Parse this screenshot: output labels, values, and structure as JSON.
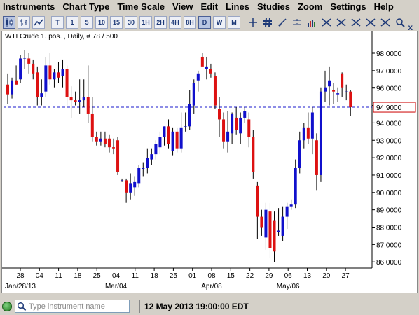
{
  "menu": [
    "Instruments",
    "Chart Type",
    "Time Scale",
    "View",
    "Edit",
    "Lines",
    "Studies",
    "Zoom",
    "Settings",
    "Help"
  ],
  "toolbar": {
    "timeframes": [
      "T",
      "1",
      "5",
      "10",
      "15",
      "30",
      "1H",
      "2H",
      "4H",
      "8H",
      "D",
      "W",
      "M"
    ],
    "active_timeframe": "D"
  },
  "chart": {
    "title": "WTI Crude 1. pos. , Daily, # 78 / 500",
    "close_label": "x",
    "price_ticks": [
      "98.0000",
      "97.0000",
      "96.0000",
      "95.0000",
      "94.0000",
      "93.0000",
      "92.0000",
      "91.0000",
      "90.0000",
      "89.0000",
      "88.0000",
      "87.0000",
      "86.0000"
    ],
    "date_ticks": [
      "28",
      "04",
      "11",
      "18",
      "25",
      "04",
      "11",
      "18",
      "25",
      "01",
      "08",
      "15",
      "22",
      "29",
      "06",
      "13",
      "20",
      "27"
    ],
    "month_labels": [
      "Jan/28/13",
      "Mar/04",
      "Apr/08",
      "May/06"
    ],
    "current_price_label": "94.9000",
    "colors": {
      "up": "#1010cc",
      "down": "#dd1111",
      "price_line": "#1a1acc",
      "price_box": "#cc0000"
    }
  },
  "chart_data": {
    "type": "candlestick",
    "title": "WTI Crude 1. pos. , Daily, # 78 / 500",
    "ylim": [
      85.5,
      98.5
    ],
    "current_price": 94.9,
    "x_ticks": [
      "28",
      "04",
      "11",
      "18",
      "25",
      "04",
      "11",
      "18",
      "25",
      "01",
      "08",
      "15",
      "22",
      "29",
      "06",
      "13",
      "20",
      "27"
    ],
    "candles": [
      {
        "o": 96.2,
        "h": 96.8,
        "l": 95.1,
        "c": 95.6
      },
      {
        "o": 95.6,
        "h": 96.6,
        "l": 95.4,
        "c": 96.4
      },
      {
        "o": 96.4,
        "h": 97.3,
        "l": 96.2,
        "c": 96.2
      },
      {
        "o": 96.5,
        "h": 97.9,
        "l": 96.3,
        "c": 97.7
      },
      {
        "o": 97.7,
        "h": 98.2,
        "l": 97.1,
        "c": 97.7
      },
      {
        "o": 97.7,
        "h": 98.0,
        "l": 96.8,
        "c": 97.4
      },
      {
        "o": 97.4,
        "h": 97.6,
        "l": 96.5,
        "c": 96.8
      },
      {
        "o": 96.9,
        "h": 97.2,
        "l": 95.0,
        "c": 95.5
      },
      {
        "o": 95.5,
        "h": 96.5,
        "l": 95.0,
        "c": 95.7
      },
      {
        "o": 95.8,
        "h": 97.8,
        "l": 95.5,
        "c": 97.3
      },
      {
        "o": 97.3,
        "h": 98.0,
        "l": 96.2,
        "c": 96.5
      },
      {
        "o": 96.5,
        "h": 97.1,
        "l": 96.0,
        "c": 96.9
      },
      {
        "o": 96.9,
        "h": 97.5,
        "l": 96.3,
        "c": 96.6
      },
      {
        "o": 96.7,
        "h": 97.6,
        "l": 96.0,
        "c": 97.1
      },
      {
        "o": 97.1,
        "h": 97.3,
        "l": 95.0,
        "c": 95.5
      },
      {
        "o": 95.5,
        "h": 96.1,
        "l": 94.3,
        "c": 95.3
      },
      {
        "o": 95.3,
        "h": 95.8,
        "l": 95.0,
        "c": 95.2
      },
      {
        "o": 95.2,
        "h": 96.5,
        "l": 94.5,
        "c": 95.3
      },
      {
        "o": 95.3,
        "h": 96.5,
        "l": 94.9,
        "c": 95.5
      },
      {
        "o": 95.5,
        "h": 97.3,
        "l": 94.0,
        "c": 94.5
      },
      {
        "o": 94.5,
        "h": 95.5,
        "l": 92.9,
        "c": 93.2
      },
      {
        "o": 93.2,
        "h": 93.5,
        "l": 92.7,
        "c": 92.9
      },
      {
        "o": 92.9,
        "h": 93.5,
        "l": 92.7,
        "c": 93.1
      },
      {
        "o": 93.1,
        "h": 93.5,
        "l": 92.6,
        "c": 92.8
      },
      {
        "o": 93.1,
        "h": 93.3,
        "l": 92.3,
        "c": 92.6
      },
      {
        "o": 92.6,
        "h": 93.1,
        "l": 92.2,
        "c": 92.5
      },
      {
        "o": 93.0,
        "h": 93.2,
        "l": 91.0,
        "c": 91.2
      },
      {
        "o": 90.7,
        "h": 90.8,
        "l": 90.6,
        "c": 90.7
      },
      {
        "o": 90.7,
        "h": 90.8,
        "l": 89.4,
        "c": 90.0
      },
      {
        "o": 90.0,
        "h": 91.1,
        "l": 89.6,
        "c": 90.5
      },
      {
        "o": 90.3,
        "h": 90.9,
        "l": 89.8,
        "c": 90.6
      },
      {
        "o": 90.5,
        "h": 91.6,
        "l": 90.3,
        "c": 91.4
      },
      {
        "o": 91.4,
        "h": 91.7,
        "l": 90.9,
        "c": 91.4
      },
      {
        "o": 91.4,
        "h": 92.5,
        "l": 91.1,
        "c": 92.0
      },
      {
        "o": 91.9,
        "h": 92.5,
        "l": 91.6,
        "c": 92.2
      },
      {
        "o": 92.2,
        "h": 93.0,
        "l": 91.9,
        "c": 92.8
      },
      {
        "o": 92.6,
        "h": 93.5,
        "l": 92.2,
        "c": 93.2
      },
      {
        "o": 93.2,
        "h": 93.8,
        "l": 92.7,
        "c": 93.8
      },
      {
        "o": 93.8,
        "h": 94.2,
        "l": 92.5,
        "c": 92.8
      },
      {
        "o": 92.4,
        "h": 93.7,
        "l": 92.1,
        "c": 93.5
      },
      {
        "o": 93.5,
        "h": 93.7,
        "l": 92.3,
        "c": 92.5
      },
      {
        "o": 92.5,
        "h": 94.6,
        "l": 92.3,
        "c": 93.7
      },
      {
        "o": 93.8,
        "h": 94.6,
        "l": 93.5,
        "c": 93.8
      },
      {
        "o": 93.8,
        "h": 95.9,
        "l": 93.6,
        "c": 95.1
      },
      {
        "o": 95.0,
        "h": 96.5,
        "l": 94.5,
        "c": 96.3
      },
      {
        "o": 96.4,
        "h": 97.0,
        "l": 95.8,
        "c": 96.8
      },
      {
        "o": 97.8,
        "h": 98.0,
        "l": 97.3,
        "c": 97.2
      },
      {
        "o": 97.1,
        "h": 97.8,
        "l": 96.5,
        "c": 97.2
      },
      {
        "o": 97.1,
        "h": 97.4,
        "l": 96.6,
        "c": 96.8
      },
      {
        "o": 96.7,
        "h": 96.9,
        "l": 94.8,
        "c": 95.0
      },
      {
        "o": 94.8,
        "h": 95.5,
        "l": 93.2,
        "c": 94.2
      },
      {
        "o": 94.2,
        "h": 94.6,
        "l": 92.5,
        "c": 92.9
      },
      {
        "o": 92.9,
        "h": 94.7,
        "l": 92.3,
        "c": 93.5
      },
      {
        "o": 93.4,
        "h": 94.6,
        "l": 92.8,
        "c": 94.5
      },
      {
        "o": 94.3,
        "h": 94.9,
        "l": 93.3,
        "c": 93.6
      },
      {
        "o": 93.4,
        "h": 94.6,
        "l": 92.8,
        "c": 94.3
      },
      {
        "o": 94.3,
        "h": 94.9,
        "l": 94.0,
        "c": 94.7
      },
      {
        "o": 94.2,
        "h": 94.6,
        "l": 92.6,
        "c": 93.2
      },
      {
        "o": 93.2,
        "h": 93.6,
        "l": 90.8,
        "c": 91.2
      },
      {
        "o": 90.4,
        "h": 90.6,
        "l": 87.3,
        "c": 88.6
      },
      {
        "o": 88.6,
        "h": 89.0,
        "l": 87.5,
        "c": 88.0
      },
      {
        "o": 87.4,
        "h": 89.4,
        "l": 86.7,
        "c": 89.0
      },
      {
        "o": 88.9,
        "h": 89.4,
        "l": 86.2,
        "c": 86.8
      },
      {
        "o": 88.4,
        "h": 88.9,
        "l": 86.0,
        "c": 86.6
      },
      {
        "o": 87.7,
        "h": 89.1,
        "l": 87.5,
        "c": 87.8
      },
      {
        "o": 87.5,
        "h": 89.2,
        "l": 87.2,
        "c": 88.6
      },
      {
        "o": 88.6,
        "h": 89.4,
        "l": 87.9,
        "c": 89.2
      },
      {
        "o": 89.2,
        "h": 89.6,
        "l": 89.0,
        "c": 89.3
      },
      {
        "o": 89.3,
        "h": 91.9,
        "l": 89.1,
        "c": 91.4
      },
      {
        "o": 91.4,
        "h": 93.5,
        "l": 91.1,
        "c": 93.0
      },
      {
        "o": 93.0,
        "h": 94.0,
        "l": 92.5,
        "c": 93.7
      },
      {
        "o": 93.7,
        "h": 94.6,
        "l": 92.8,
        "c": 93.1
      },
      {
        "o": 93.1,
        "h": 94.9,
        "l": 92.2,
        "c": 94.6
      },
      {
        "o": 93.0,
        "h": 93.4,
        "l": 90.1,
        "c": 91.0
      },
      {
        "o": 91.0,
        "h": 96.0,
        "l": 90.6,
        "c": 95.8
      },
      {
        "o": 95.8,
        "h": 97.0,
        "l": 95.2,
        "c": 96.0
      },
      {
        "o": 96.1,
        "h": 97.2,
        "l": 95.0,
        "c": 96.4
      },
      {
        "o": 95.9,
        "h": 96.3,
        "l": 95.1,
        "c": 95.8
      },
      {
        "o": 95.6,
        "h": 96.0,
        "l": 95.2,
        "c": 95.7
      },
      {
        "o": 96.8,
        "h": 96.9,
        "l": 95.5,
        "c": 96.0
      },
      {
        "o": 95.8,
        "h": 96.2,
        "l": 95.3,
        "c": 95.8
      },
      {
        "o": 95.8,
        "h": 95.9,
        "l": 94.4,
        "c": 94.9
      }
    ]
  },
  "status": {
    "search_placeholder": "Type instrument name",
    "timestamp": "12 May 2013 19:00:00 EDT"
  }
}
